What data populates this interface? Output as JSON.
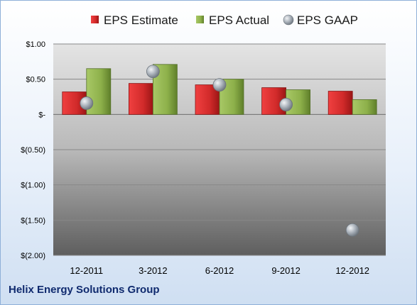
{
  "chart_data": {
    "type": "bar",
    "categories": [
      "12-2011",
      "3-2012",
      "6-2012",
      "9-2012",
      "12-2012"
    ],
    "series": [
      {
        "name": "EPS Estimate",
        "kind": "bar",
        "color": "#d12a2a",
        "values": [
          0.32,
          0.44,
          0.42,
          0.38,
          0.33
        ]
      },
      {
        "name": "EPS Actual",
        "kind": "bar",
        "color": "#8db04a",
        "values": [
          0.65,
          0.71,
          0.5,
          0.35,
          0.21
        ]
      },
      {
        "name": "EPS GAAP",
        "kind": "scatter",
        "color": "#9aa3ad",
        "values": [
          0.16,
          0.61,
          0.42,
          0.14,
          -1.64
        ]
      }
    ],
    "ylim": [
      -2.0,
      1.0
    ],
    "yticks": [
      {
        "value": 1.0,
        "label": "$1.00"
      },
      {
        "value": 0.5,
        "label": "$0.50"
      },
      {
        "value": 0.0,
        "label": "$-"
      },
      {
        "value": -0.5,
        "label": "$(0.50)"
      },
      {
        "value": -1.0,
        "label": "$(1.00)"
      },
      {
        "value": -1.5,
        "label": "$(1.50)"
      },
      {
        "value": -2.0,
        "label": "$(2.00)"
      }
    ],
    "grid": true,
    "legend": "top"
  },
  "company_name": "Helix Energy Solutions Group"
}
